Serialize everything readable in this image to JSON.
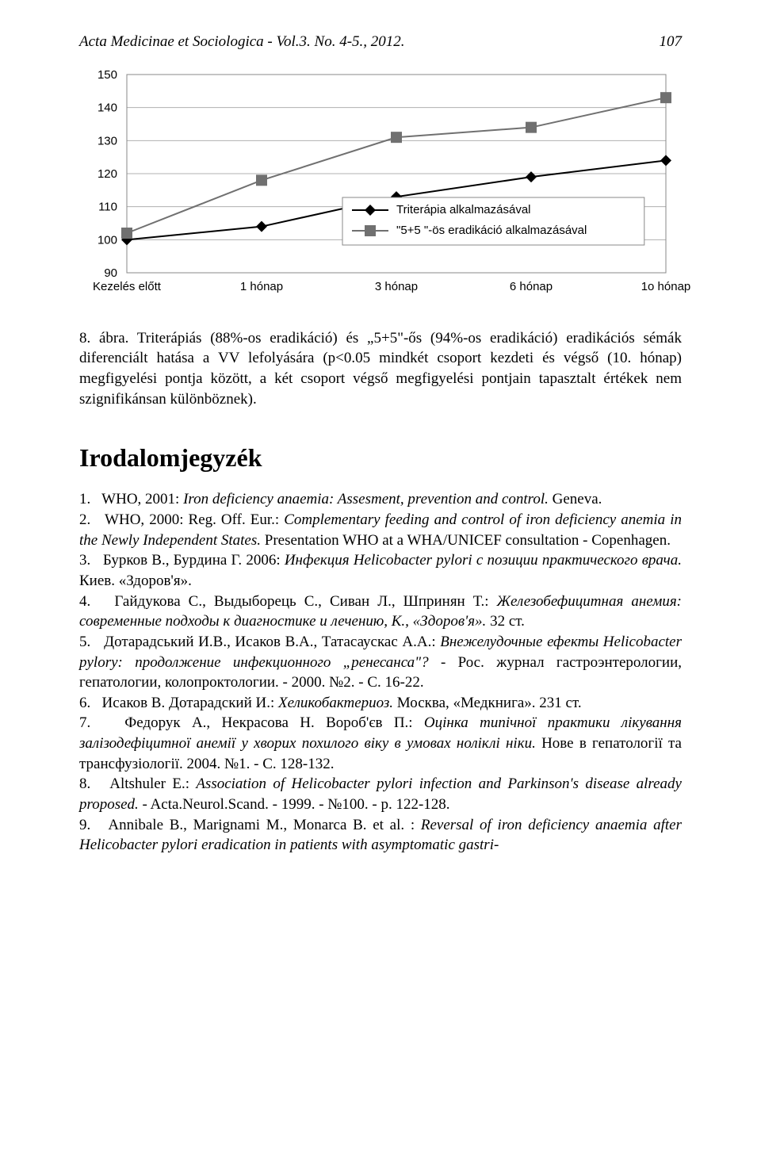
{
  "header": {
    "journal": "Acta Medicinae et Sociologica - Vol.3. No. 4-5., 2012.",
    "page": "107"
  },
  "chart": {
    "type": "line",
    "x_categories": [
      "Kezelés előtt",
      "1 hónap",
      "3 hónap",
      "6 hónap",
      "1o hónap"
    ],
    "y_ticks": [
      90,
      100,
      110,
      120,
      130,
      140,
      150
    ],
    "ylim": [
      90,
      150
    ],
    "series": [
      {
        "name": "Triterápia alkalmazásával",
        "marker": "diamond",
        "values": [
          100,
          104,
          113,
          119,
          124
        ],
        "color": "#000000"
      },
      {
        "name": "\"5+5 \"-ös eradikáció alkalmazásával",
        "marker": "square",
        "values": [
          102,
          118,
          131,
          134,
          143
        ],
        "color": "#707070"
      }
    ],
    "axis_fontsize": 15,
    "legend_fontsize": 15,
    "grid_color": "#b0b0b0",
    "background_color": "#ffffff",
    "line_width": 2,
    "marker_size": 7
  },
  "caption": {
    "prefix": "8. ábra. ",
    "text": "Triterápiás (88%-os eradikáció) és „5+5\"-ős (94%-os eradikáció) eradikációs sémák diferenciált hatása a VV lefolyására (p<0.05 mindkét csoport kezdeti és végső (10. hónap) megfigyelési pontja között, a két csoport végső megfigyelési pontjain tapasztalt értékek nem szignifikánsan különböznek)."
  },
  "section_title": "Irodalomjegyzék",
  "references": [
    {
      "n": "1.",
      "plain_a": "WHO, 2001: ",
      "ital_a": "Iron deficiency anaemia: Assesment, prevention and control.",
      "plain_b": " Geneva."
    },
    {
      "n": "2.",
      "plain_a": "WHO, 2000: Reg. Off. Eur.: ",
      "ital_a": "Complementary feeding and control of iron deficiency anemia in the Newly Independent States.",
      "plain_b": " Presentation WHO at a WHA/UNICEF consultation - Copenhagen."
    },
    {
      "n": "3.",
      "plain_a": "Бурков В., Бурдина Г. 2006: ",
      "ital_a": "Инфекция Helicobacter pylori с позиции практического врача.",
      "plain_b": " Киев. «Здоров'я»."
    },
    {
      "n": "4.",
      "plain_a": "Гайдукова С., Выдыборець С., Сиван Л., Шпринян Т.: ",
      "ital_a": "Железобефицитная анемия: современные подходы к диагностике и лечению, К., «Здоров'я».",
      "plain_b": " 32 ст."
    },
    {
      "n": "5.",
      "plain_a": "Дотарадський И.В., Исаков В.А., Татасаускас А.А.: ",
      "ital_a": "Внежелудочные ефекты Helicobacter pylory: продолжение инфекционного „ренесанса\"?",
      "plain_b": " - Рос. журнал гастроэнтерологии, гепатологии, колопроктологии. - 2000. №2. - C. 16-22."
    },
    {
      "n": "6.",
      "plain_a": "Исаков В. Дотарадский И.: ",
      "ital_a": "Хеликобактериоз.",
      "plain_b": " Москва, «Медкнига». 231 ст."
    },
    {
      "n": "7.",
      "plain_a": "Федорук А., Некрасова Н. Вороб'єв П.: ",
      "ital_a": "Оцінка типічної практики лікування залізодефіцитної анемії у хворих похилого віку в умовах ноліклі ніки.",
      "plain_b": " Нове в гепатології та трансфузіології. 2004. №1. - C. 128-132."
    },
    {
      "n": "8.",
      "plain_a": "Altshuler E.: ",
      "ital_a": "Association of Helicobacter pylori infection and Parkinson's disease already proposed.",
      "plain_b": " - Acta.Neurol.Scand. - 1999. - №100. - p. 122-128."
    },
    {
      "n": "9.",
      "plain_a": "Annibale B., Marignami M., Monarca B. et al. : ",
      "ital_a": "Reversal of iron deficiency anaemia after Helicobacter pylori eradication in patients with asymptomatic gastri-",
      "plain_b": ""
    }
  ]
}
